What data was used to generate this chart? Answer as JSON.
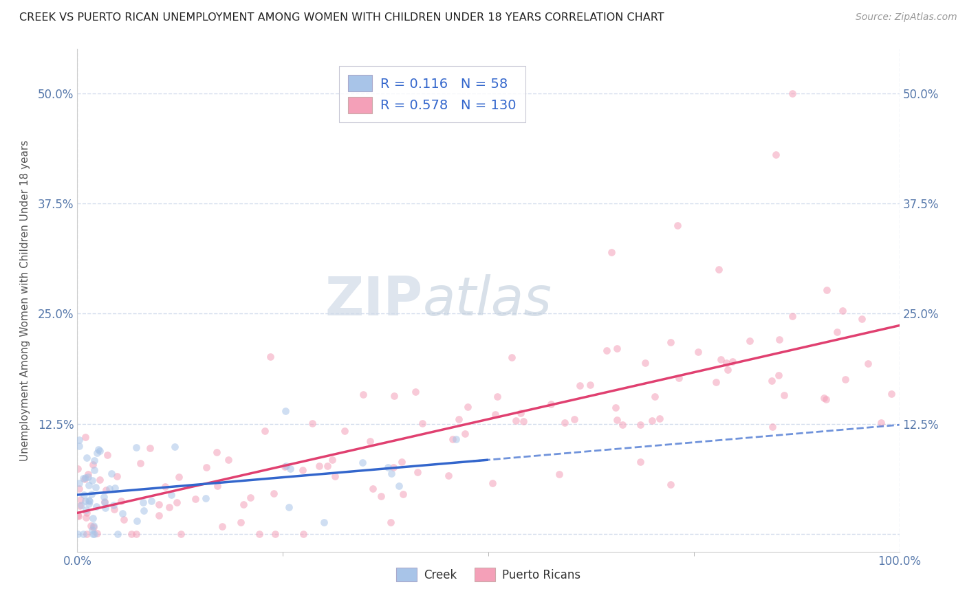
{
  "title": "CREEK VS PUERTO RICAN UNEMPLOYMENT AMONG WOMEN WITH CHILDREN UNDER 18 YEARS CORRELATION CHART",
  "source": "Source: ZipAtlas.com",
  "ylabel": "Unemployment Among Women with Children Under 18 years",
  "watermark_zip": "ZIP",
  "watermark_atlas": "atlas",
  "creek_R": 0.116,
  "creek_N": 58,
  "pr_R": 0.578,
  "pr_N": 130,
  "creek_color": "#a8c4e8",
  "pr_color": "#f4a0b8",
  "legend_text_color": "#3366cc",
  "xlim": [
    0,
    100
  ],
  "ylim": [
    -2,
    55
  ],
  "yticks": [
    0,
    12.5,
    25.0,
    37.5,
    50.0
  ],
  "ytick_labels": [
    "",
    "12.5%",
    "25.0%",
    "37.5%",
    "50.0%"
  ],
  "xtick_labels": [
    "0.0%",
    "100.0%"
  ],
  "background_color": "#ffffff",
  "grid_color": "#c8d4e8",
  "marker_size": 60,
  "marker_alpha": 0.55,
  "creek_line_color": "#3366cc",
  "pr_line_color": "#e04070"
}
